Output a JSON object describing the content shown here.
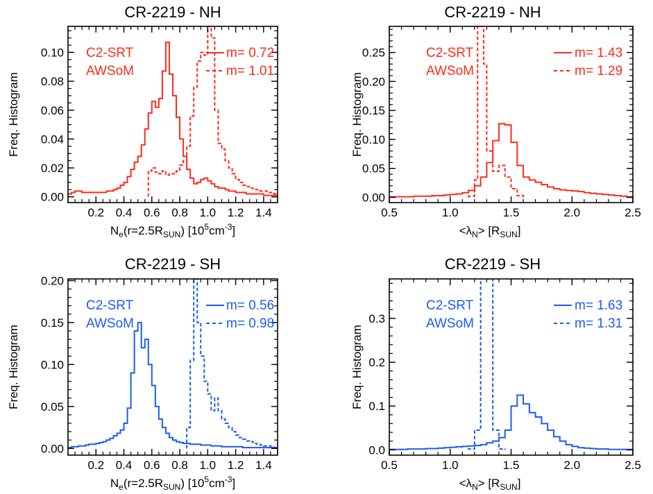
{
  "colors": {
    "red": "#ff2a1a",
    "blue": "#1a5cf0",
    "axis": "#000000"
  },
  "chart_data": [
    {
      "type": "histogram",
      "title": "CR-2219 - NH",
      "color": "#ff2a1a",
      "ylabel": "Freq. Histogram",
      "xlabel_parts": [
        "N",
        "e",
        "(r=2.5R",
        "SUN",
        ") [10",
        "5",
        "cm",
        "-3",
        "]"
      ],
      "xlim": [
        0.0,
        1.5
      ],
      "ylim": [
        -0.004,
        0.118
      ],
      "xticks": [
        0.2,
        0.4,
        0.6,
        0.8,
        1.0,
        1.2,
        1.4
      ],
      "xticklabels": [
        "0.2",
        "0.4",
        "0.6",
        "0.8",
        "1.0",
        "1.2",
        "1.4"
      ],
      "xminor": 0.05,
      "yticks": [
        0.0,
        0.02,
        0.04,
        0.06,
        0.08,
        0.1
      ],
      "yticklabels": [
        "0.00",
        "0.02",
        "0.04",
        "0.06",
        "0.08",
        "0.10"
      ],
      "yminor": 0.005,
      "legend_labels": [
        "C2-SRT",
        "AWSoM"
      ],
      "legend_m": [
        "m= 0.72",
        "m= 1.01"
      ],
      "series": [
        {
          "name": "C2-SRT",
          "style": "solid",
          "x": [
            0.0,
            0.025,
            0.05,
            0.075,
            0.1,
            0.125,
            0.15,
            0.175,
            0.2,
            0.225,
            0.25,
            0.275,
            0.3,
            0.325,
            0.35,
            0.375,
            0.4,
            0.425,
            0.45,
            0.475,
            0.5,
            0.525,
            0.55,
            0.575,
            0.6,
            0.625,
            0.65,
            0.675,
            0.7,
            0.725,
            0.75,
            0.775,
            0.8,
            0.825,
            0.85,
            0.875,
            0.9,
            0.925,
            0.95,
            0.975,
            1.0,
            1.025,
            1.05,
            1.075,
            1.1,
            1.125,
            1.15,
            1.175,
            1.2,
            1.225,
            1.25,
            1.275,
            1.3,
            1.325,
            1.35,
            1.375,
            1.4,
            1.425,
            1.45,
            1.475
          ],
          "y": [
            0.002,
            0.003,
            0.004,
            0.004,
            0.003,
            0.003,
            0.003,
            0.003,
            0.003,
            0.003,
            0.003,
            0.004,
            0.004,
            0.005,
            0.006,
            0.008,
            0.01,
            0.014,
            0.019,
            0.024,
            0.028,
            0.036,
            0.047,
            0.058,
            0.066,
            0.062,
            0.068,
            0.087,
            0.107,
            0.085,
            0.07,
            0.055,
            0.04,
            0.028,
            0.019,
            0.013,
            0.009,
            0.01,
            0.012,
            0.013,
            0.011,
            0.009,
            0.007,
            0.006,
            0.006,
            0.005,
            0.004,
            0.004,
            0.003,
            0.003,
            0.003,
            0.002,
            0.002,
            0.002,
            0.002,
            0.002,
            0.001,
            0.001,
            0.001,
            0.001
          ]
        },
        {
          "name": "AWSoM",
          "style": "dashed",
          "x": [
            0.575,
            0.6,
            0.625,
            0.65,
            0.675,
            0.7,
            0.725,
            0.75,
            0.775,
            0.8,
            0.825,
            0.85,
            0.875,
            0.9,
            0.925,
            0.95,
            0.975,
            1.0,
            1.025,
            1.05,
            1.075,
            1.1,
            1.125,
            1.15,
            1.175,
            1.2,
            1.225,
            1.25,
            1.275,
            1.3,
            1.325,
            1.35,
            1.375,
            1.4,
            1.425,
            1.45,
            1.475
          ],
          "y": [
            0.018,
            0.02,
            0.017,
            0.016,
            0.018,
            0.015,
            0.016,
            0.016,
            0.018,
            0.022,
            0.025,
            0.035,
            0.056,
            0.076,
            0.094,
            0.1,
            0.098,
            0.118,
            0.11,
            0.06,
            0.037,
            0.033,
            0.025,
            0.02,
            0.016,
            0.012,
            0.01,
            0.008,
            0.007,
            0.006,
            0.005,
            0.005,
            0.004,
            0.004,
            0.003,
            0.003,
            0.002
          ]
        }
      ]
    },
    {
      "type": "histogram",
      "title": "CR-2219 - NH",
      "color": "#ff2a1a",
      "ylabel": "Freq. Histogram",
      "xlabel_parts": [
        "<λ",
        "N",
        "> [R",
        "SUN",
        "]"
      ],
      "xlim": [
        0.5,
        2.5
      ],
      "ylim": [
        -0.009,
        0.295
      ],
      "xticks": [
        0.5,
        1.0,
        1.5,
        2.0,
        2.5
      ],
      "xticklabels": [
        "0.5",
        "1.0",
        "1.5",
        "2.0",
        "2.5"
      ],
      "xminor": 0.1,
      "yticks": [
        0.0,
        0.05,
        0.1,
        0.15,
        0.2,
        0.25
      ],
      "yticklabels": [
        "0.00",
        "0.05",
        "0.10",
        "0.15",
        "0.20",
        "0.25"
      ],
      "yminor": 0.01,
      "legend_labels": [
        "C2-SRT",
        "AWSoM"
      ],
      "legend_m": [
        "m= 1.43",
        "m= 1.29"
      ],
      "series": [
        {
          "name": "C2-SRT",
          "style": "solid",
          "x": [
            0.5,
            0.55,
            0.6,
            0.65,
            0.7,
            0.75,
            0.8,
            0.85,
            0.9,
            0.95,
            1.0,
            1.05,
            1.1,
            1.15,
            1.2,
            1.25,
            1.3,
            1.35,
            1.4,
            1.45,
            1.5,
            1.55,
            1.6,
            1.65,
            1.7,
            1.75,
            1.8,
            1.85,
            1.9,
            1.95,
            2.0,
            2.05,
            2.1,
            2.15,
            2.2,
            2.25,
            2.3,
            2.35,
            2.4,
            2.45
          ],
          "y": [
            0.001,
            0.001,
            0.001,
            0.001,
            0.002,
            0.002,
            0.002,
            0.003,
            0.003,
            0.004,
            0.005,
            0.006,
            0.008,
            0.012,
            0.02,
            0.035,
            0.06,
            0.098,
            0.127,
            0.125,
            0.095,
            0.055,
            0.035,
            0.03,
            0.026,
            0.022,
            0.018,
            0.015,
            0.013,
            0.012,
            0.011,
            0.01,
            0.008,
            0.007,
            0.006,
            0.005,
            0.004,
            0.003,
            0.002,
            0.001
          ]
        },
        {
          "name": "AWSoM",
          "style": "dashed",
          "x": [
            1.15,
            1.2,
            1.225,
            1.25,
            1.275,
            1.3,
            1.35,
            1.4,
            1.45,
            1.5,
            1.55
          ],
          "y": [
            0.002,
            0.03,
            0.295,
            0.295,
            0.23,
            0.08,
            0.045,
            0.055,
            0.035,
            0.015,
            0.003
          ]
        }
      ]
    },
    {
      "type": "histogram",
      "title": "CR-2219 - SH",
      "color": "#1a5cf0",
      "ylabel": "Freq. Histogram",
      "xlabel_parts": [
        "N",
        "e",
        "(r=2.5R",
        "SUN",
        ") [10",
        "5",
        "cm",
        "-3",
        "]"
      ],
      "xlim": [
        0.0,
        1.5
      ],
      "ylim": [
        -0.008,
        0.202
      ],
      "xticks": [
        0.2,
        0.4,
        0.6,
        0.8,
        1.0,
        1.2,
        1.4
      ],
      "xticklabels": [
        "0.2",
        "0.4",
        "0.6",
        "0.8",
        "1.0",
        "1.2",
        "1.4"
      ],
      "xminor": 0.05,
      "yticks": [
        0.0,
        0.05,
        0.1,
        0.15,
        0.2
      ],
      "yticklabels": [
        "0.00",
        "0.05",
        "0.10",
        "0.15",
        "0.20"
      ],
      "yminor": 0.01,
      "legend_labels": [
        "C2-SRT",
        "AWSoM"
      ],
      "legend_m": [
        "m= 0.56",
        "m= 0.98"
      ],
      "series": [
        {
          "name": "C2-SRT",
          "style": "solid",
          "x": [
            0.0,
            0.025,
            0.05,
            0.075,
            0.1,
            0.125,
            0.15,
            0.175,
            0.2,
            0.225,
            0.25,
            0.275,
            0.3,
            0.325,
            0.35,
            0.375,
            0.4,
            0.425,
            0.45,
            0.475,
            0.5,
            0.525,
            0.55,
            0.575,
            0.6,
            0.625,
            0.65,
            0.675,
            0.7,
            0.725,
            0.75,
            0.775,
            0.8,
            0.825,
            0.85,
            0.875,
            0.9,
            0.925,
            0.95,
            0.975,
            1.0,
            1.025,
            1.05,
            1.075,
            1.1,
            1.125,
            1.15,
            1.175,
            1.2,
            1.225,
            1.25,
            1.275,
            1.3,
            1.325,
            1.35,
            1.375,
            1.4,
            1.425,
            1.45,
            1.475
          ],
          "y": [
            0.001,
            0.002,
            0.002,
            0.003,
            0.003,
            0.004,
            0.005,
            0.005,
            0.006,
            0.007,
            0.008,
            0.01,
            0.012,
            0.015,
            0.018,
            0.022,
            0.03,
            0.048,
            0.09,
            0.14,
            0.15,
            0.12,
            0.13,
            0.1,
            0.075,
            0.05,
            0.035,
            0.025,
            0.018,
            0.013,
            0.01,
            0.008,
            0.007,
            0.006,
            0.006,
            0.005,
            0.005,
            0.005,
            0.004,
            0.004,
            0.004,
            0.003,
            0.003,
            0.003,
            0.002,
            0.002,
            0.002,
            0.002,
            0.002,
            0.002,
            0.001,
            0.001,
            0.001,
            0.001,
            0.001,
            0.001,
            0.001,
            0.001,
            0.001,
            0.001
          ]
        },
        {
          "name": "AWSoM",
          "style": "dashed",
          "x": [
            0.85,
            0.875,
            0.9,
            0.925,
            0.95,
            0.975,
            1.0,
            1.025,
            1.05,
            1.075,
            1.1,
            1.125,
            1.15,
            1.175,
            1.2,
            1.225,
            1.25,
            1.275,
            1.3,
            1.325,
            1.35,
            1.375,
            1.4,
            1.425,
            1.45,
            1.475
          ],
          "y": [
            0.025,
            0.105,
            0.202,
            0.15,
            0.11,
            0.08,
            0.065,
            0.045,
            0.06,
            0.045,
            0.035,
            0.03,
            0.025,
            0.02,
            0.016,
            0.013,
            0.011,
            0.009,
            0.008,
            0.006,
            0.005,
            0.004,
            0.003,
            0.003,
            0.002,
            0.001
          ]
        }
      ]
    },
    {
      "type": "histogram",
      "title": "CR-2219 - SH",
      "color": "#1a5cf0",
      "ylabel": "Freq. Histogram",
      "xlabel_parts": [
        "<λ",
        "N",
        "> [R",
        "SUN",
        "]"
      ],
      "xlim": [
        0.5,
        2.5
      ],
      "ylim": [
        -0.012,
        0.39
      ],
      "xticks": [
        0.5,
        1.0,
        1.5,
        2.0,
        2.5
      ],
      "xticklabels": [
        "0.5",
        "1.0",
        "1.5",
        "2.0",
        "2.5"
      ],
      "xminor": 0.1,
      "yticks": [
        0.0,
        0.1,
        0.2,
        0.3
      ],
      "yticklabels": [
        "0.0",
        "0.1",
        "0.2",
        "0.3"
      ],
      "yminor": 0.02,
      "legend_labels": [
        "C2-SRT",
        "AWSoM"
      ],
      "legend_m": [
        "m= 1.63",
        "m= 1.31"
      ],
      "series": [
        {
          "name": "C2-SRT",
          "style": "solid",
          "x": [
            0.5,
            0.55,
            0.6,
            0.65,
            0.7,
            0.75,
            0.8,
            0.85,
            0.9,
            0.95,
            1.0,
            1.05,
            1.1,
            1.15,
            1.2,
            1.25,
            1.3,
            1.35,
            1.4,
            1.45,
            1.5,
            1.55,
            1.6,
            1.65,
            1.7,
            1.75,
            1.8,
            1.85,
            1.9,
            1.95,
            2.0,
            2.05,
            2.1,
            2.15,
            2.2,
            2.25,
            2.3,
            2.35,
            2.4,
            2.45
          ],
          "y": [
            0.001,
            0.001,
            0.001,
            0.002,
            0.002,
            0.002,
            0.003,
            0.003,
            0.004,
            0.005,
            0.006,
            0.007,
            0.008,
            0.009,
            0.01,
            0.012,
            0.016,
            0.02,
            0.028,
            0.045,
            0.1,
            0.125,
            0.105,
            0.085,
            0.075,
            0.06,
            0.045,
            0.03,
            0.02,
            0.012,
            0.008,
            0.005,
            0.004,
            0.003,
            0.002,
            0.002,
            0.001,
            0.001,
            0.001,
            0.001
          ]
        },
        {
          "name": "AWSoM",
          "style": "dashed",
          "x": [
            1.15,
            1.2,
            1.25,
            1.3,
            1.35,
            1.4
          ],
          "y": [
            0.002,
            0.045,
            0.39,
            0.39,
            0.045,
            0.002
          ]
        }
      ]
    }
  ]
}
